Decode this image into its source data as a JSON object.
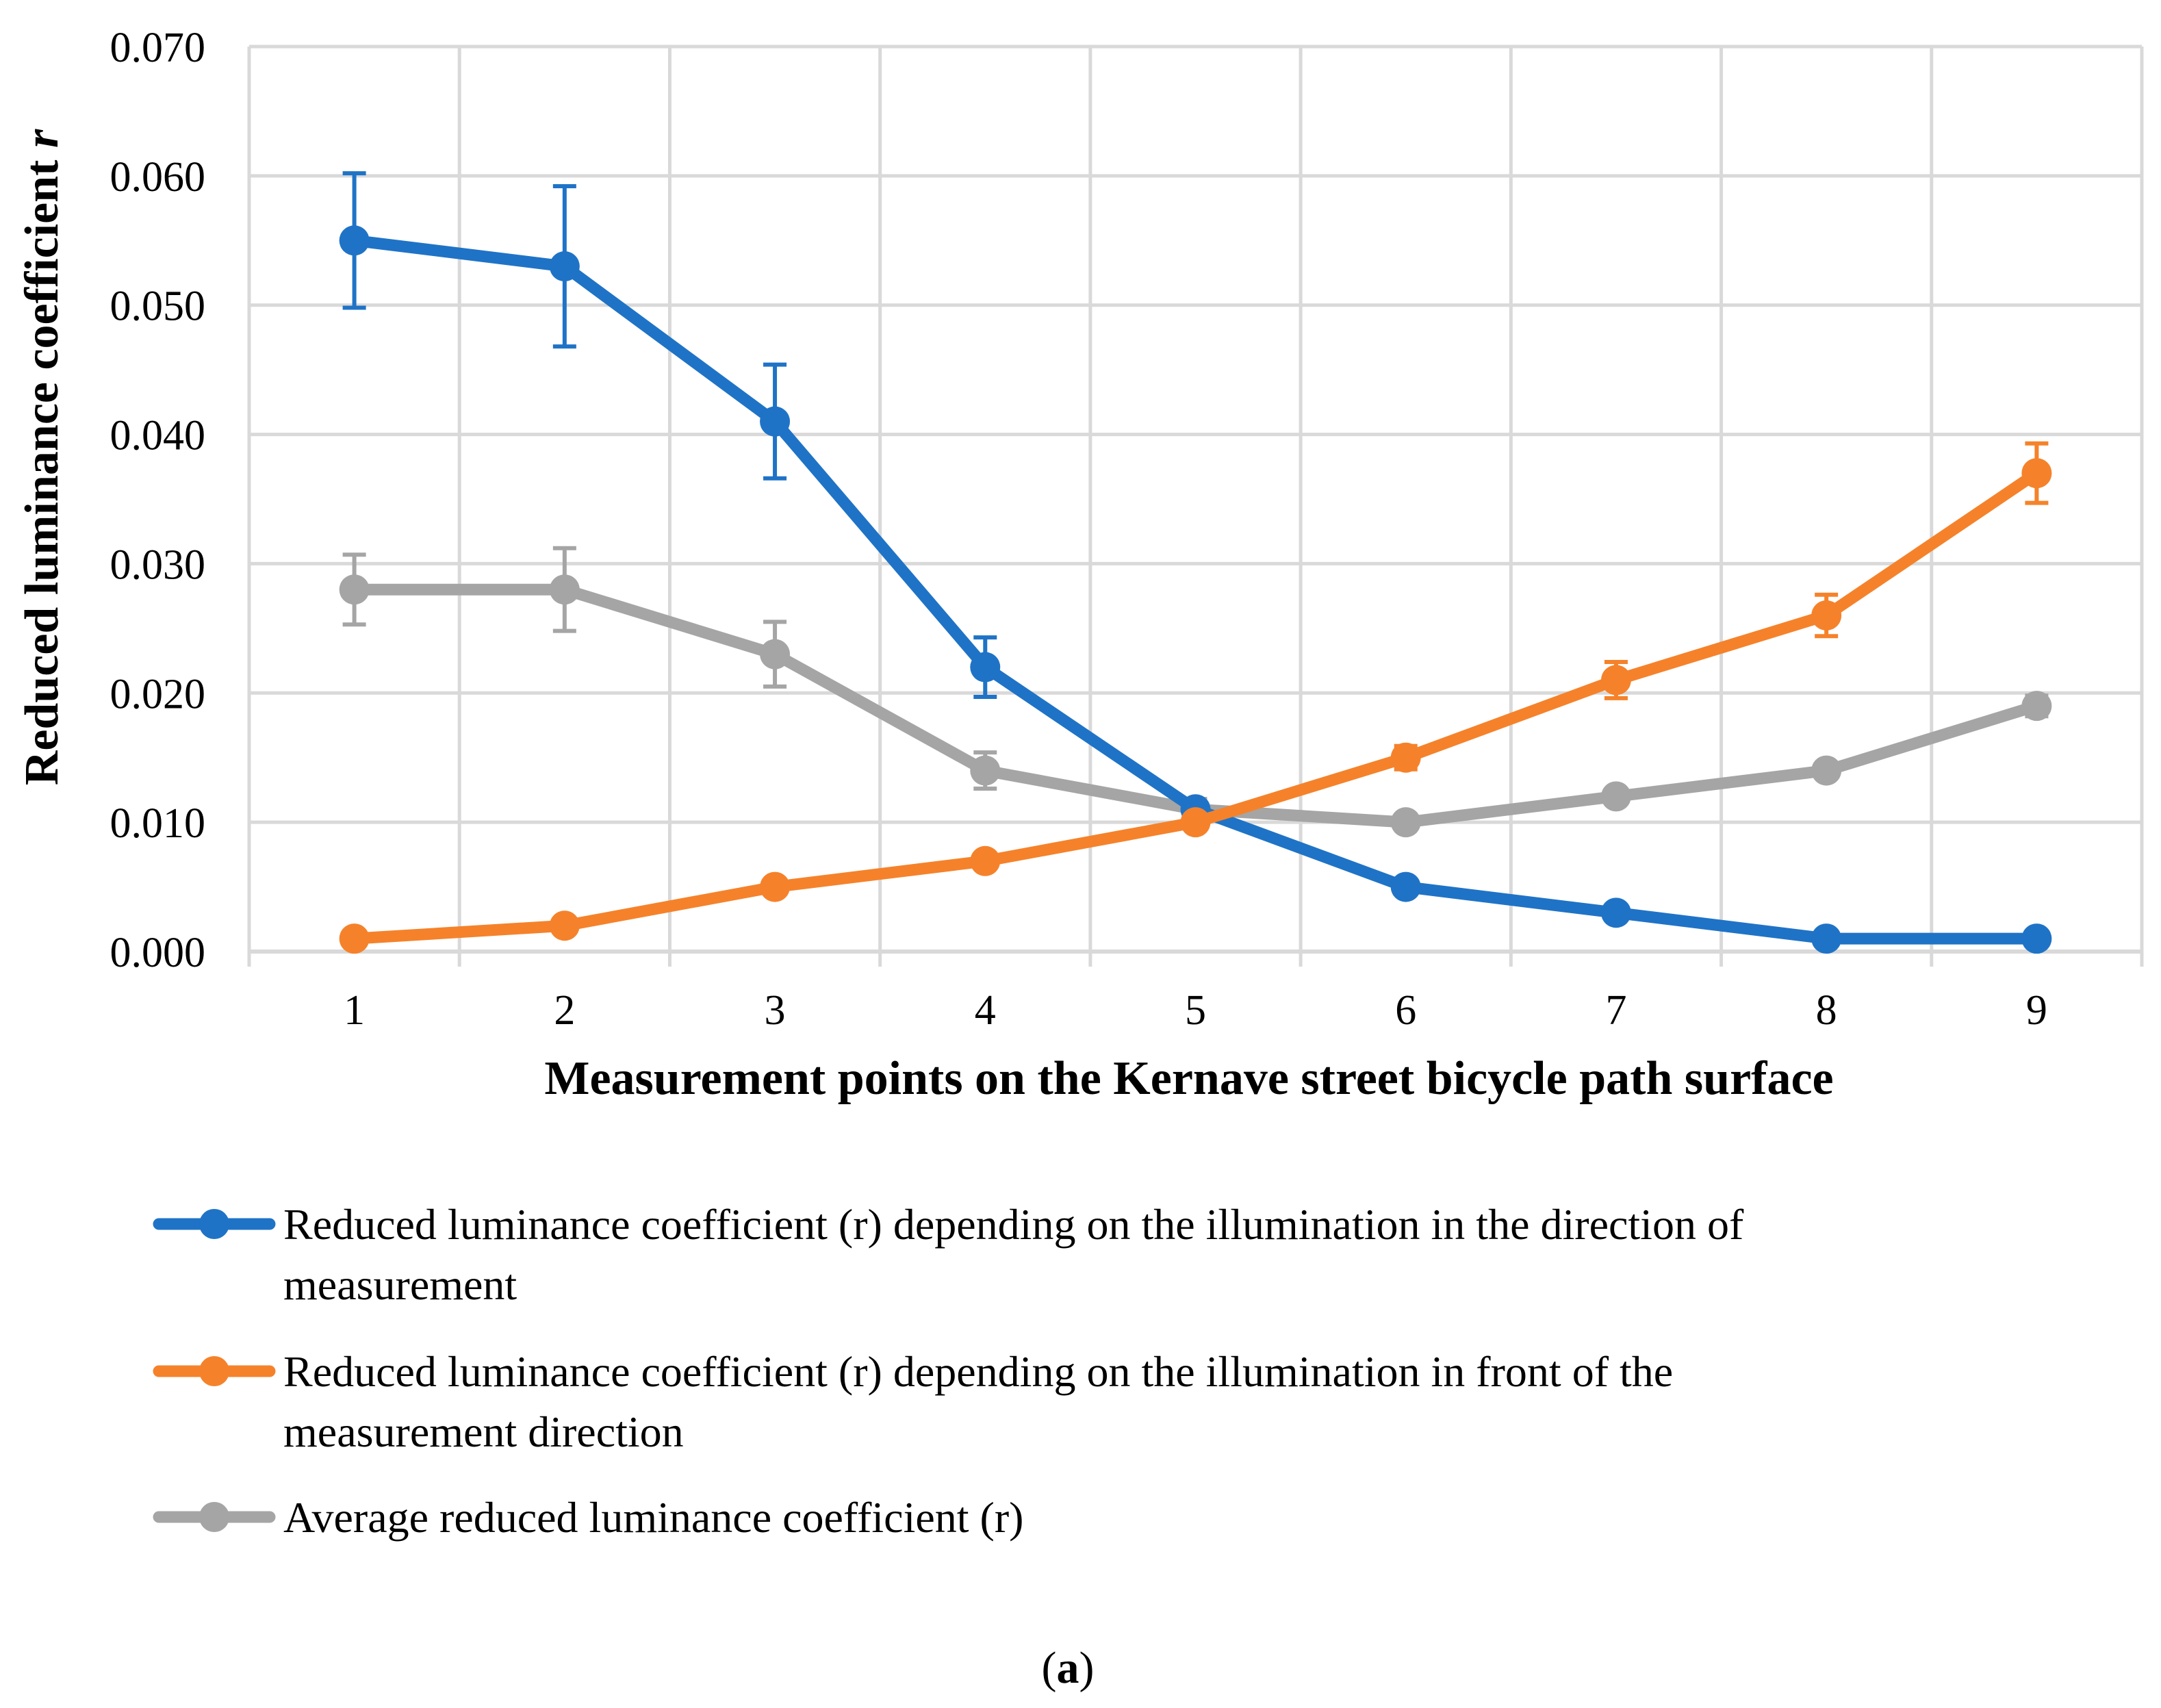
{
  "chart_data": {
    "type": "line",
    "x": [
      1,
      2,
      3,
      4,
      5,
      6,
      7,
      8,
      9
    ],
    "ylim": [
      0,
      0.07
    ],
    "yticks": [
      "0.000",
      "0.010",
      "0.020",
      "0.030",
      "0.040",
      "0.050",
      "0.060",
      "0.070"
    ],
    "xlabel": "Measurement points on the Kernave street bicycle path surface",
    "ylabel_main": "Reduced luminance coefficient ",
    "ylabel_italic": "r",
    "grid": true,
    "legend_position": "bottom",
    "series": [
      {
        "name": "Reduced luminance coefficient (r) depending on the illumination in the direction of measurement",
        "legend_lines": [
          "Reduced luminance coefficient (r) depending on the illumination in the direction of",
          "measurement"
        ],
        "color": "#1F73C6",
        "values": [
          0.055,
          0.053,
          0.041,
          0.022,
          0.011,
          0.005,
          0.003,
          0.001,
          0.001
        ],
        "errors": [
          0.0052,
          0.0062,
          0.0044,
          0.0023,
          0.0,
          0.0,
          0.0,
          0.0,
          0.0
        ]
      },
      {
        "name": "Reduced luminance coefficient (r) depending on the illumination in front of the measurement direction",
        "legend_lines": [
          "Reduced luminance coefficient (r) depending on the illumination in front of the",
          "measurement direction"
        ],
        "color": "#F5822A",
        "values": [
          0.001,
          0.002,
          0.005,
          0.007,
          0.01,
          0.015,
          0.021,
          0.026,
          0.037
        ],
        "errors": [
          0.0,
          0.0,
          0.0,
          0.0,
          0.0006,
          0.0009,
          0.0014,
          0.0016,
          0.0023
        ]
      },
      {
        "name": "Average reduced luminance coefficient (r)",
        "legend_lines": [
          "Average reduced luminance coefficient (r)"
        ],
        "color": "#A5A5A5",
        "values": [
          0.028,
          0.028,
          0.023,
          0.014,
          0.011,
          0.01,
          0.012,
          0.014,
          0.019
        ],
        "errors": [
          0.0027,
          0.0032,
          0.0025,
          0.0014,
          0.0008,
          0.0,
          0.0,
          0.0,
          0.0008
        ]
      }
    ]
  },
  "caption": {
    "open": "(",
    "letter": "a",
    "close": ")"
  }
}
